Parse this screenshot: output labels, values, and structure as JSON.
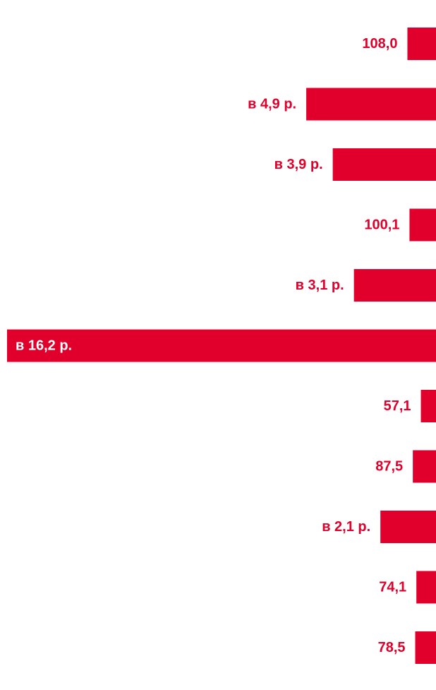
{
  "chart_data": {
    "type": "bar",
    "orientation": "horizontal",
    "bar_color": "#e0002b",
    "label_color_outside": "#e0002b",
    "label_color_inside": "#ffffff",
    "values": [
      108.0,
      490,
      390,
      100.1,
      310,
      1620,
      57.1,
      87.5,
      210,
      74.1,
      78.5
    ],
    "labels": [
      "108,0",
      "в 4,9 р.",
      "в 3,9 р.",
      "100,1",
      "в 3,1 р.",
      "в 16,2 р.",
      "57,1",
      "87,5",
      "в 2,1 р.",
      "74,1",
      "78,5"
    ],
    "value_note": "values shown as multipliers (в X р.) are expressed as percent equivalents"
  }
}
